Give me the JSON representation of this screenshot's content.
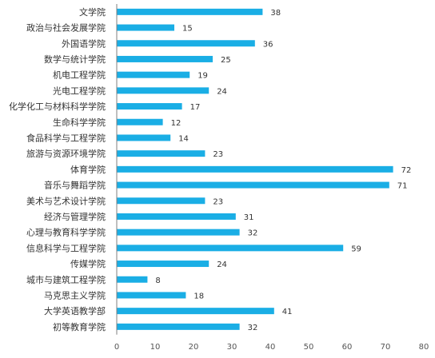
{
  "chart_data": {
    "type": "bar",
    "orientation": "horizontal",
    "categories": [
      "文学院",
      "政治与社会发展学院",
      "外国语学院",
      "数学与统计学院",
      "机电工程学院",
      "光电工程学院",
      "化学化工与材料科学学院",
      "生命科学学院",
      "食品科学与工程学院",
      "旅游与资源环境学院",
      "体育学院",
      "音乐与舞蹈学院",
      "美术与艺术设计学院",
      "经济与管理学院",
      "心理与教育科学学院",
      "信息科学与工程学院",
      "传媒学院",
      "城市与建筑工程学院",
      "马克思主义学院",
      "大学英语教学部",
      "初等教育学院"
    ],
    "values": [
      38,
      15,
      36,
      25,
      19,
      24,
      17,
      12,
      14,
      23,
      72,
      71,
      23,
      31,
      32,
      59,
      24,
      8,
      18,
      41,
      32
    ],
    "xlim": [
      0,
      80
    ],
    "xticks": [
      "0",
      "10",
      "20",
      "30",
      "40",
      "50",
      "60",
      "70",
      "80"
    ],
    "title": "",
    "xlabel": "",
    "ylabel": "",
    "grid": false,
    "bar_color": "#1aaee5",
    "data_labels": true
  }
}
